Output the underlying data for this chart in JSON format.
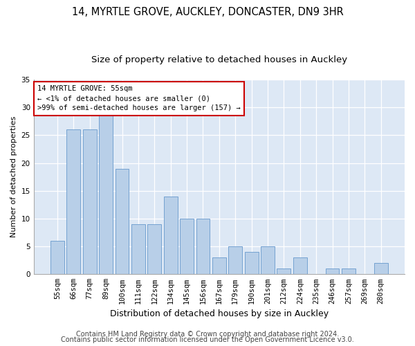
{
  "title1": "14, MYRTLE GROVE, AUCKLEY, DONCASTER, DN9 3HR",
  "title2": "Size of property relative to detached houses in Auckley",
  "xlabel": "Distribution of detached houses by size in Auckley",
  "ylabel": "Number of detached properties",
  "footer1": "Contains HM Land Registry data © Crown copyright and database right 2024.",
  "footer2": "Contains public sector information licensed under the Open Government Licence v3.0.",
  "annotation_title": "14 MYRTLE GROVE: 55sqm",
  "annotation_line1": "← <1% of detached houses are smaller (0)",
  "annotation_line2": ">99% of semi-detached houses are larger (157) →",
  "categories": [
    "55sqm",
    "66sqm",
    "77sqm",
    "89sqm",
    "100sqm",
    "111sqm",
    "122sqm",
    "134sqm",
    "145sqm",
    "156sqm",
    "167sqm",
    "179sqm",
    "190sqm",
    "201sqm",
    "212sqm",
    "224sqm",
    "235sqm",
    "246sqm",
    "257sqm",
    "269sqm",
    "280sqm"
  ],
  "values": [
    6,
    26,
    26,
    29,
    19,
    9,
    9,
    14,
    10,
    10,
    3,
    5,
    4,
    5,
    1,
    3,
    0,
    1,
    1,
    0,
    2
  ],
  "bar_color": "#b8cfe8",
  "bar_edge_color": "#6699cc",
  "ylim": [
    0,
    35
  ],
  "yticks": [
    0,
    5,
    10,
    15,
    20,
    25,
    30,
    35
  ],
  "bg_color": "#dde8f5",
  "grid_color": "#ffffff",
  "fig_bg_color": "#ffffff",
  "annotation_box_color": "#ffffff",
  "annotation_border_color": "#cc0000",
  "title1_fontsize": 10.5,
  "title2_fontsize": 9.5,
  "ylabel_fontsize": 8,
  "xlabel_fontsize": 9,
  "tick_fontsize": 7.5,
  "footer_fontsize": 7
}
